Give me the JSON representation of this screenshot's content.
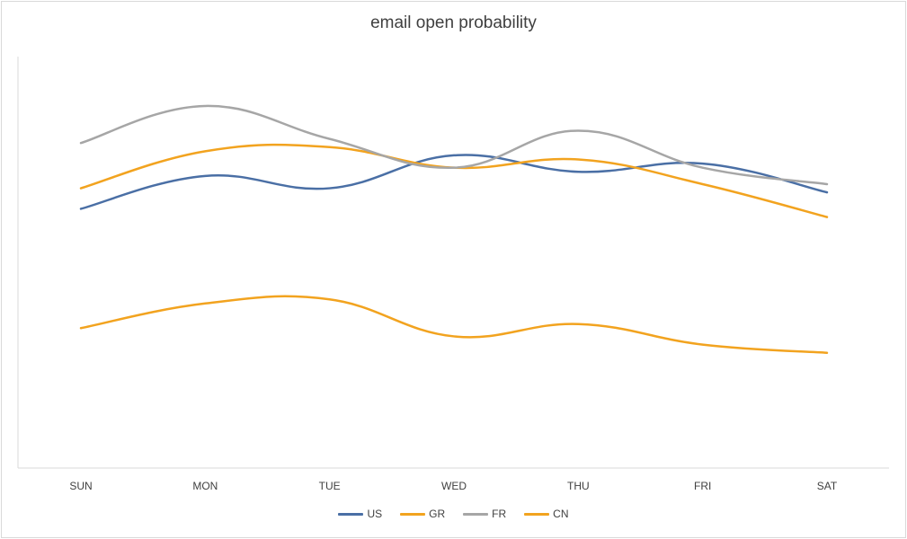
{
  "chart_data": {
    "type": "line",
    "title": "email open probability",
    "xlabel": "",
    "ylabel": "",
    "categories": [
      "SUN",
      "MON",
      "TUE",
      "WED",
      "THU",
      "FRI",
      "SAT"
    ],
    "ylim": [
      0,
      1
    ],
    "smooth": true,
    "grid": false,
    "legend": "bottom",
    "series": [
      {
        "name": "US",
        "color": "#4a6fa5",
        "values": [
          0.63,
          0.71,
          0.68,
          0.76,
          0.72,
          0.74,
          0.67
        ]
      },
      {
        "name": "GR",
        "color": "#f2a31f",
        "values": [
          0.68,
          0.77,
          0.78,
          0.73,
          0.75,
          0.69,
          0.61
        ]
      },
      {
        "name": "FR",
        "color": "#a6a6a6",
        "values": [
          0.79,
          0.88,
          0.8,
          0.73,
          0.82,
          0.73,
          0.69
        ]
      },
      {
        "name": "CN",
        "color": "#f2a31f",
        "values": [
          0.34,
          0.4,
          0.41,
          0.32,
          0.35,
          0.3,
          0.28
        ]
      }
    ]
  }
}
